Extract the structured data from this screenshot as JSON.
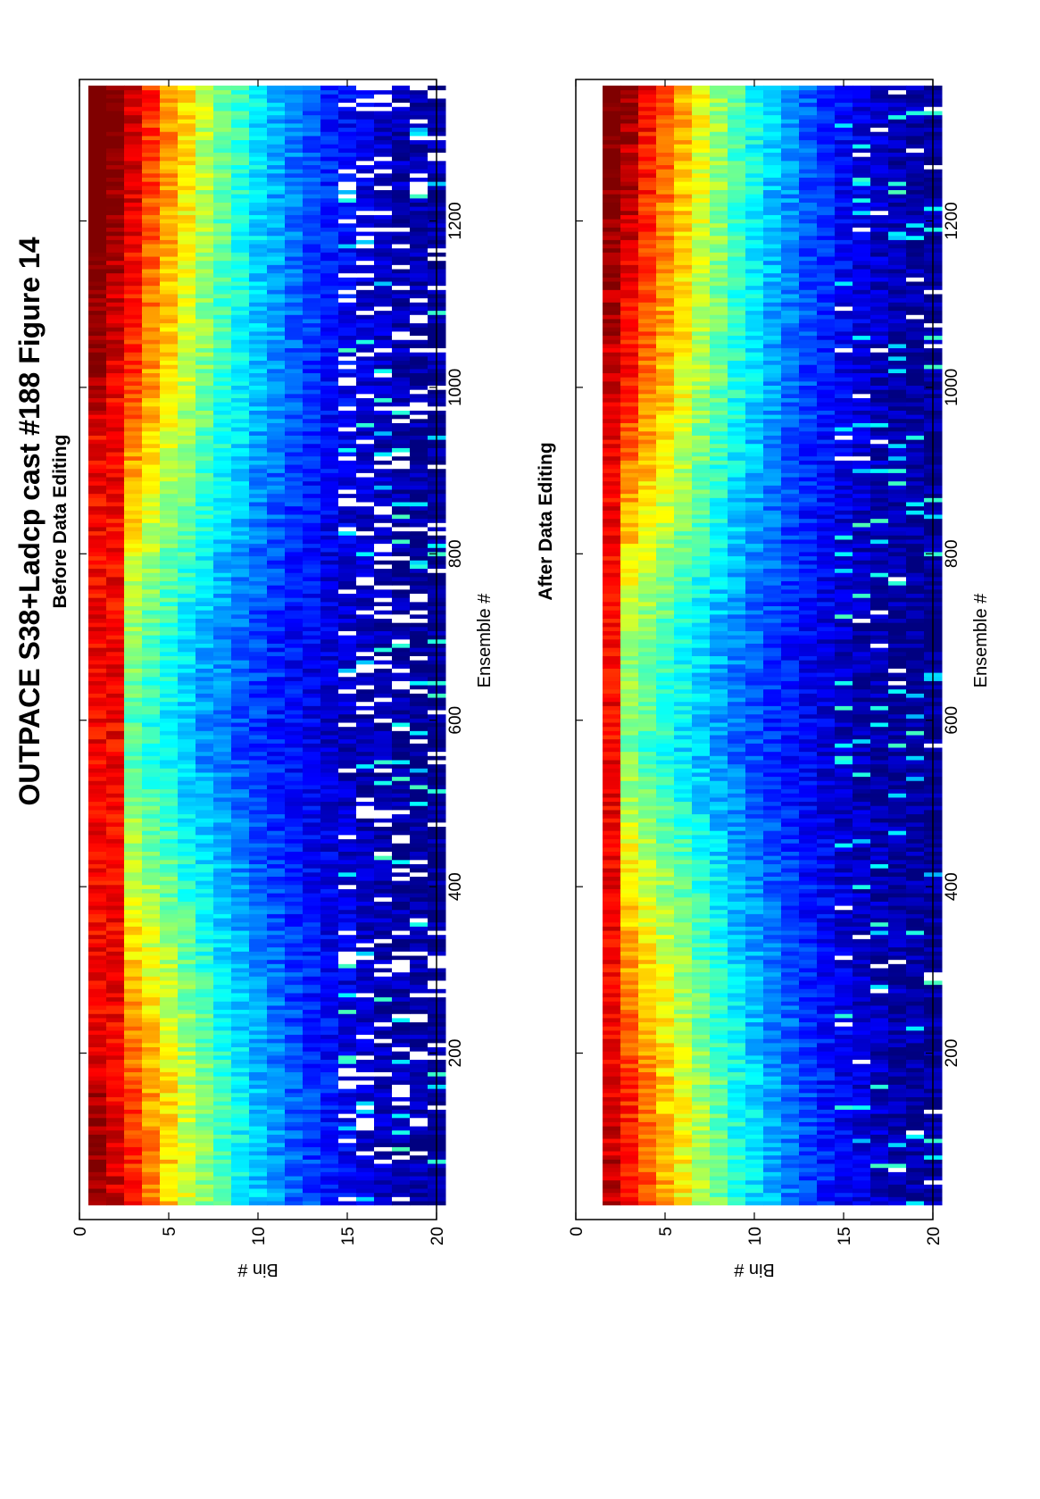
{
  "figure": {
    "title": "OUTPACE S38+Ladcp cast #188  Figure 14"
  },
  "colors": {
    "jet_dark_blue": "#00008f",
    "jet_blue": "#0000ff",
    "jet_cyan": "#00ffff",
    "jet_yellow": "#ffff00",
    "jet_red": "#ff0000",
    "jet_dark_red": "#800000",
    "gap": "#ffffff"
  },
  "chart_data": [
    {
      "type": "heatmap",
      "title": "Before Data Editing",
      "xlabel": "Ensemble #",
      "ylabel": "Bin #",
      "xlim": [
        0,
        1370
      ],
      "ylim": [
        0,
        20
      ],
      "xticks": [
        200,
        400,
        600,
        800,
        1000,
        1200
      ],
      "yticks": [
        0,
        5,
        10,
        15,
        20
      ],
      "bins": [
        1,
        20
      ],
      "first_bin_valid": true,
      "colormap": "jet",
      "grid": false,
      "legend": "none",
      "intensity_profile_by_bin": [
        1.0,
        0.93,
        0.85,
        0.76,
        0.68,
        0.6,
        0.52,
        0.45,
        0.39,
        0.33,
        0.28,
        0.23,
        0.19,
        0.15,
        0.12,
        0.09,
        0.07,
        0.05,
        0.04,
        0.03
      ],
      "decay_shape": [
        {
          "ensemble": 0,
          "value": 1.0
        },
        {
          "ensemble": 150,
          "value": 0.95
        },
        {
          "ensemble": 300,
          "value": 0.8
        },
        {
          "ensemble": 450,
          "value": 0.65
        },
        {
          "ensemble": 560,
          "value": 0.52
        },
        {
          "ensemble": 700,
          "value": 0.6
        },
        {
          "ensemble": 850,
          "value": 0.78
        },
        {
          "ensemble": 1000,
          "value": 0.95
        },
        {
          "ensemble": 1200,
          "value": 1.05
        },
        {
          "ensemble": 1370,
          "value": 1.1
        }
      ],
      "bad_data_fraction_deep_bins": 0.14
    },
    {
      "type": "heatmap",
      "title": "After Data Editing",
      "xlabel": "Ensemble #",
      "ylabel": "Bin #",
      "xlim": [
        0,
        1370
      ],
      "ylim": [
        0,
        20
      ],
      "xticks": [
        200,
        400,
        600,
        800,
        1000,
        1200
      ],
      "yticks": [
        0,
        5,
        10,
        15,
        20
      ],
      "bins": [
        2,
        20
      ],
      "first_bin_valid": false,
      "colormap": "jet",
      "grid": false,
      "legend": "none",
      "intensity_profile_by_bin": [
        1.0,
        0.95,
        0.88,
        0.8,
        0.72,
        0.64,
        0.56,
        0.49,
        0.42,
        0.36,
        0.3,
        0.25,
        0.2,
        0.16,
        0.12,
        0.09,
        0.07,
        0.05,
        0.04,
        0.03
      ],
      "decay_shape": [
        {
          "ensemble": 0,
          "value": 1.0
        },
        {
          "ensemble": 150,
          "value": 0.95
        },
        {
          "ensemble": 300,
          "value": 0.82
        },
        {
          "ensemble": 450,
          "value": 0.68
        },
        {
          "ensemble": 560,
          "value": 0.55
        },
        {
          "ensemble": 700,
          "value": 0.62
        },
        {
          "ensemble": 850,
          "value": 0.8
        },
        {
          "ensemble": 1000,
          "value": 0.96
        },
        {
          "ensemble": 1200,
          "value": 1.05
        },
        {
          "ensemble": 1370,
          "value": 1.1
        }
      ],
      "bad_data_fraction_deep_bins": 0.03
    }
  ]
}
